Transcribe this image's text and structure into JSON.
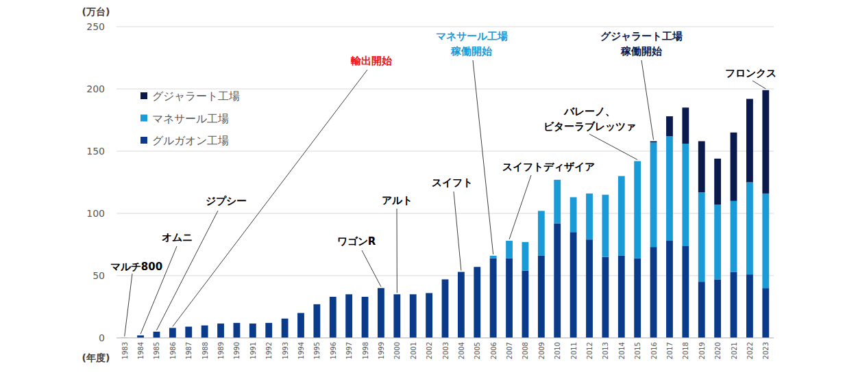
{
  "chart_data": {
    "type": "bar",
    "stacked": true,
    "y_label": "(万台)",
    "x_label": "(年度)",
    "categories": [
      "1983",
      "1984",
      "1985",
      "1986",
      "1987",
      "1988",
      "1989",
      "1990",
      "1991",
      "1992",
      "1993",
      "1994",
      "1995",
      "1996",
      "1997",
      "1998",
      "1999",
      "2000",
      "2001",
      "2002",
      "2003",
      "2004",
      "2005",
      "2006",
      "2007",
      "2008",
      "2009",
      "2010",
      "2011",
      "2012",
      "2013",
      "2014",
      "2015",
      "2016",
      "2017",
      "2018",
      "2019",
      "2020",
      "2021",
      "2022",
      "2023"
    ],
    "series": [
      {
        "name": "グルガオン工場",
        "color": "#0a3a8a",
        "values": [
          0.1,
          2,
          5,
          8,
          9,
          10,
          11.5,
          12,
          11.5,
          12,
          15.5,
          20,
          27,
          33,
          35,
          33,
          40,
          35,
          35,
          36,
          47,
          53,
          57,
          64,
          64,
          54,
          66,
          92,
          85,
          79,
          65,
          66,
          64,
          73,
          78,
          74,
          45,
          47,
          53,
          51,
          40
        ]
      },
      {
        "name": "マネサール工場",
        "color": "#1b9ad8",
        "values": [
          null,
          null,
          null,
          null,
          null,
          null,
          null,
          null,
          null,
          null,
          null,
          null,
          null,
          null,
          null,
          null,
          null,
          null,
          null,
          null,
          null,
          null,
          null,
          2,
          14,
          23,
          36,
          35,
          28,
          37,
          50,
          64,
          78,
          84,
          84,
          82,
          72,
          60,
          57,
          74,
          76
        ]
      },
      {
        "name": "グジャラート工場",
        "color": "#0b1a4c",
        "values": [
          null,
          null,
          null,
          null,
          null,
          null,
          null,
          null,
          null,
          null,
          null,
          null,
          null,
          null,
          null,
          null,
          null,
          null,
          null,
          null,
          null,
          null,
          null,
          null,
          null,
          null,
          null,
          null,
          null,
          null,
          null,
          null,
          null,
          1,
          16,
          29,
          41,
          37,
          55,
          67,
          83
        ]
      }
    ],
    "ylim": [
      0,
      250
    ],
    "yticks": [
      0,
      50,
      100,
      150,
      200,
      250
    ],
    "grid": true,
    "legend": "upper left",
    "annotations": [
      {
        "text": "マルチ800",
        "category": "1983",
        "color": "#000000"
      },
      {
        "text": "オムニ",
        "category": "1984",
        "color": "#000000"
      },
      {
        "text": "ジプシー",
        "category": "1985",
        "color": "#000000"
      },
      {
        "text": "輸出開始",
        "category": "1986",
        "color": "#e8141b"
      },
      {
        "text": "ワゴンR",
        "category": "1999",
        "color": "#000000"
      },
      {
        "text": "アルト",
        "category": "2000",
        "color": "#000000"
      },
      {
        "text": "スイフト",
        "category": "2004",
        "color": "#000000"
      },
      {
        "text": "マネサール工場\n稼働開始",
        "category": "2006",
        "color": "#1b9ad8"
      },
      {
        "text": "スイフトディザイア",
        "category": "2007",
        "color": "#000000"
      },
      {
        "text": "バレーノ、\nビターラブレッツァ",
        "category": "2015",
        "color": "#000000"
      },
      {
        "text": "グジャラート工場\n稼働開始",
        "category": "2016",
        "color": "#0b1a4c"
      },
      {
        "text": "フロンクス",
        "category": "2023",
        "color": "#000000"
      }
    ]
  }
}
